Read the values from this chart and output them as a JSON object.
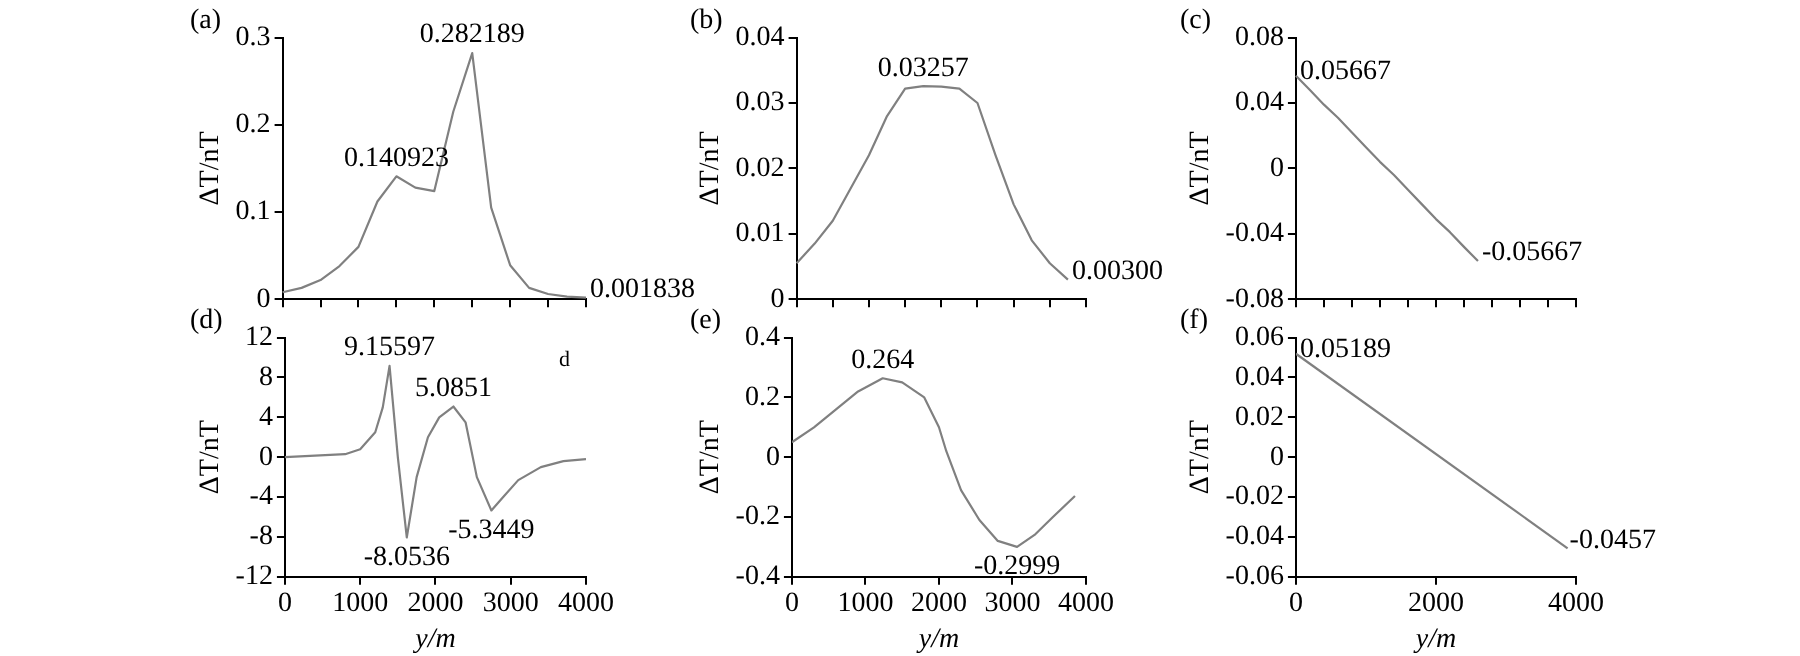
{
  "chart_data": [
    {
      "type": "line",
      "title": "(a)",
      "ylabel": "ΔT/nT",
      "color": "#808080",
      "tick_labels": "y",
      "ylim": [
        0,
        0.3
      ],
      "yticks": [
        0,
        0.1,
        0.2,
        0.3
      ],
      "categories": [
        null,
        null,
        null,
        null,
        null,
        null,
        null,
        null,
        null,
        null,
        null,
        null,
        null,
        null,
        null,
        null,
        null
      ],
      "values": [
        0.008,
        0.013,
        0.022,
        0.038,
        0.06,
        0.112,
        0.140923,
        0.128,
        0.124,
        0.215,
        0.282189,
        0.105,
        0.039,
        0.013,
        0.006,
        0.003,
        0.001838
      ],
      "annotations": [
        {
          "text": "0.140923",
          "y": 0.140923
        },
        {
          "text": "0.282189",
          "y": 0.282189
        },
        "0.001838"
      ]
    },
    {
      "type": "line",
      "title": "(b)",
      "ylabel": "ΔT/nT",
      "color": "#808080",
      "tick_labels": "y",
      "ylim": [
        0,
        0.04
      ],
      "yticks": [
        0,
        0.01,
        0.02,
        0.03,
        0.04
      ],
      "categories": [
        null,
        null,
        null,
        null,
        null,
        null,
        null,
        null,
        null,
        null,
        null,
        null,
        null,
        null,
        null,
        null,
        null
      ],
      "values": [
        0.0055,
        0.0085,
        0.012,
        0.017,
        0.022,
        0.028,
        0.0322,
        0.03257,
        0.0325,
        0.0322,
        0.03,
        0.022,
        0.0145,
        0.009,
        0.0055,
        0.003,
        null
      ],
      "annotations": [
        {
          "text": "0.03257",
          "y": 0.03257
        },
        "0.00300"
      ]
    },
    {
      "type": "line",
      "title": "(c)",
      "ylabel": "ΔT/nT",
      "color": "#808080",
      "tick_labels": "y",
      "ylim": [
        -0.08,
        0.08
      ],
      "yticks": [
        -0.08,
        -0.04,
        0,
        0.04,
        0.08
      ],
      "categories": [
        null,
        null,
        null,
        null,
        null,
        null,
        null,
        null,
        null,
        null,
        null,
        null,
        null,
        null,
        null,
        null,
        null,
        null,
        null,
        null,
        null
      ],
      "values": [
        0.05667,
        0.048,
        0.039,
        0.031,
        0.022,
        0.013,
        0.004,
        -0.004,
        -0.013,
        -0.022,
        -0.031,
        -0.039,
        -0.048,
        -0.05667,
        null,
        null,
        null,
        null,
        null,
        null,
        null
      ],
      "annotations": [
        "0.05667",
        "-0.05667"
      ]
    },
    {
      "type": "line",
      "title": "(d)",
      "xlabel": "y/m",
      "ylabel": "ΔT/nT",
      "color": "#808080",
      "xlim": [
        0,
        4000
      ],
      "xticks": [
        0,
        1000,
        2000,
        3000,
        4000
      ],
      "ylim": [
        -12,
        12
      ],
      "yticks": [
        -12,
        -8,
        -4,
        0,
        4,
        8,
        12
      ],
      "x": [
        0,
        800,
        1000,
        1200,
        1300,
        1390,
        1500,
        1619,
        1750,
        1900,
        2050,
        2238,
        2400,
        2550,
        2743,
        2900,
        3100,
        3400,
        3700,
        4000
      ],
      "values": [
        0,
        0.3,
        0.8,
        2.5,
        5,
        9.15597,
        0,
        -8.0536,
        -2,
        2,
        4,
        5.0851,
        3.5,
        -2,
        -5.3449,
        -4,
        -2.3,
        -1,
        -0.4,
        -0.2
      ],
      "annotations": [
        {
          "text": "9.15597",
          "x": 1390,
          "y": 9.15597
        },
        {
          "text": "-8.0536",
          "x": 1619,
          "y": -8.0536
        },
        {
          "text": "5.0851",
          "x": 2238,
          "y": 5.0851
        },
        {
          "text": "-5.3449",
          "x": 2743,
          "y": -5.3449
        },
        "d"
      ]
    },
    {
      "type": "line",
      "title": "(e)",
      "xlabel": "y/m",
      "ylabel": "ΔT/nT",
      "color": "#808080",
      "xlim": [
        0,
        4000
      ],
      "xticks": [
        0,
        1000,
        2000,
        3000,
        4000
      ],
      "ylim": [
        -0.4,
        0.4
      ],
      "yticks": [
        -0.4,
        -0.2,
        0,
        0.2,
        0.4
      ],
      "x": [
        0,
        300,
        600,
        900,
        1235,
        1500,
        1800,
        2000,
        2100,
        2300,
        2550,
        2800,
        3062,
        3300,
        3550,
        3850
      ],
      "values": [
        0.05,
        0.1,
        0.16,
        0.22,
        0.264,
        0.25,
        0.2,
        0.1,
        0.02,
        -0.11,
        -0.21,
        -0.28,
        -0.2999,
        -0.26,
        -0.2,
        -0.13
      ],
      "annotations": [
        {
          "text": "0.264",
          "x": 1235,
          "y": 0.264
        },
        {
          "text": "-0.2999",
          "x": 3062,
          "y": -0.2999
        }
      ]
    },
    {
      "type": "line",
      "title": "(f)",
      "xlabel": "y/m",
      "ylabel": "ΔT/nT",
      "color": "#808080",
      "xlim": [
        0,
        4000
      ],
      "xticks": [
        0,
        2000,
        4000
      ],
      "ylim": [
        -0.06,
        0.06
      ],
      "yticks": [
        -0.06,
        -0.04,
        -0.02,
        0,
        0.02,
        0.04,
        0.06
      ],
      "x": [
        0,
        3880
      ],
      "values": [
        0.05189,
        -0.0457
      ],
      "annotations": [
        {
          "text": "0.05189",
          "x": 0,
          "y": 0.05189
        },
        {
          "text": "-0.0457",
          "x": 3880,
          "y": -0.0457
        }
      ]
    }
  ]
}
